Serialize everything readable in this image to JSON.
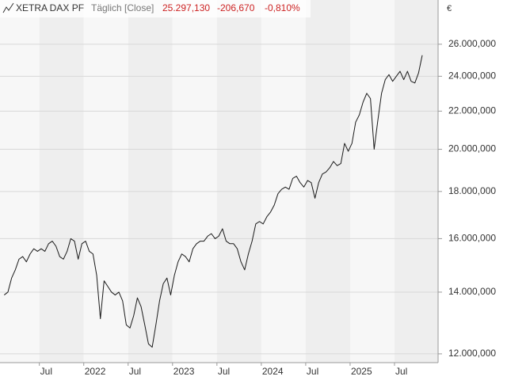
{
  "chart_data": {
    "type": "line",
    "title": "XETRA DAX PF",
    "subtitle": "Täglich [Close]",
    "last_value": "25.297,130",
    "change": "-206,670",
    "change_percent": "-0,810%",
    "currency": "€",
    "log_scale": true,
    "grid": true,
    "color": "#1a1a1a",
    "categories": [
      null,
      null,
      null,
      null,
      null,
      null,
      null,
      null,
      null,
      null,
      "Jul",
      null,
      null,
      null,
      null,
      null,
      null,
      null,
      null,
      null,
      null,
      null,
      "2022",
      null,
      null,
      null,
      null,
      null,
      null,
      null,
      null,
      null,
      null,
      null,
      "Jul",
      null,
      null,
      null,
      null,
      null,
      null,
      null,
      null,
      null,
      null,
      null,
      "2023",
      null,
      null,
      null,
      null,
      null,
      null,
      null,
      null,
      null,
      null,
      null,
      "Jul",
      null,
      null,
      null,
      null,
      null,
      null,
      null,
      null,
      null,
      null,
      null,
      "2024",
      null,
      null,
      null,
      null,
      null,
      null,
      null,
      null,
      null,
      null,
      null,
      "Jul",
      null,
      null,
      null,
      null,
      null,
      null,
      null,
      null,
      null,
      null,
      null,
      "2025",
      null,
      null,
      null,
      null,
      null,
      null,
      null,
      null,
      null,
      null,
      null,
      "Jul",
      null,
      null,
      null,
      null,
      null,
      null,
      null
    ],
    "values": [
      13900,
      14000,
      14500,
      14800,
      15200,
      15300,
      15100,
      15400,
      15600,
      15500,
      15600,
      15500,
      15800,
      15900,
      15700,
      15300,
      15200,
      15500,
      16000,
      15900,
      15200,
      15800,
      15900,
      15500,
      15400,
      14600,
      13100,
      14400,
      14200,
      14000,
      13900,
      14000,
      13700,
      12900,
      12800,
      13200,
      13800,
      13500,
      12900,
      12300,
      12200,
      12900,
      13700,
      14300,
      14500,
      13900,
      14600,
      15100,
      15400,
      15300,
      15100,
      15600,
      15800,
      15900,
      15900,
      16100,
      16200,
      16000,
      16100,
      16400,
      15900,
      15800,
      15800,
      15600,
      15100,
      14800,
      15400,
      15900,
      16600,
      16700,
      16600,
      16900,
      17100,
      17400,
      17900,
      18100,
      18200,
      18100,
      18600,
      18700,
      18400,
      18200,
      18500,
      18400,
      17700,
      18400,
      18800,
      18900,
      19100,
      19400,
      19200,
      19300,
      20300,
      19900,
      20300,
      21400,
      21800,
      22500,
      23000,
      22700,
      20000,
      21500,
      23000,
      23800,
      24100,
      23700,
      24000,
      24300,
      23800,
      24300,
      23700,
      23600,
      24200,
      25297.13
    ],
    "ylim": [
      11740,
      27800
    ],
    "yticks": [
      {
        "value": 12000,
        "label": "12.000,000"
      },
      {
        "value": 14000,
        "label": "14.000,000"
      },
      {
        "value": 16000,
        "label": "16.000,000"
      },
      {
        "value": 18000,
        "label": "18.000,000"
      },
      {
        "value": 20000,
        "label": "20.000,000"
      },
      {
        "value": 22000,
        "label": "22.000,000"
      },
      {
        "value": 24000,
        "label": "24.000,000"
      },
      {
        "value": 26000,
        "label": "26.000,000"
      }
    ]
  }
}
